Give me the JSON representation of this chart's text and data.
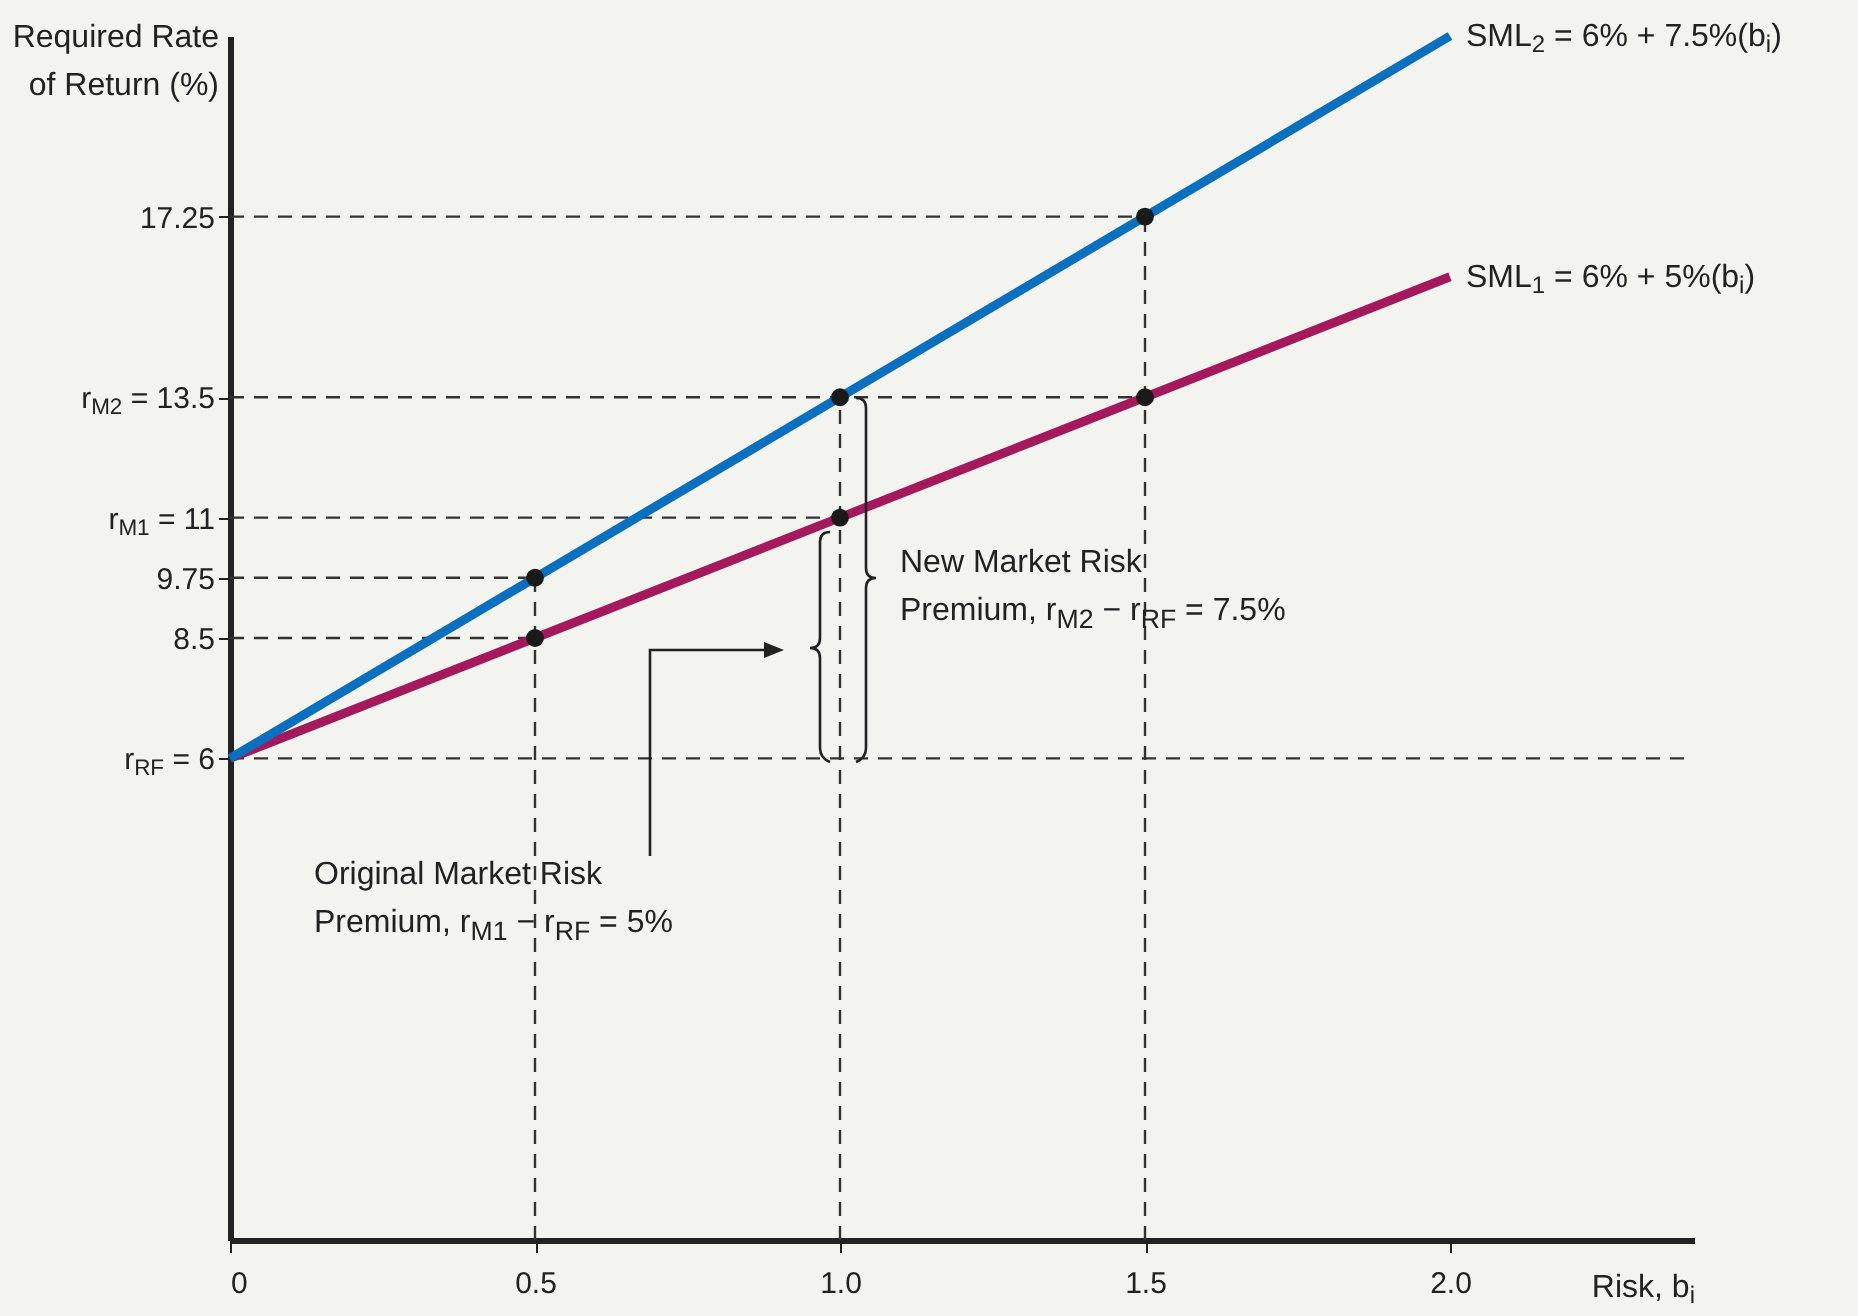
{
  "chart_data": {
    "type": "line",
    "xlabel": "Risk, b$_{i}$",
    "ylabel": "Required Rate\nof Return (%)",
    "x": [
      0,
      0.5,
      1.0,
      1.5,
      2.0
    ],
    "series": [
      {
        "name": "SML$_{1}$ = 6% + 5%(b$_{i}$)",
        "color": "#a3195b",
        "values": [
          6,
          8.5,
          11,
          13.5,
          16
        ]
      },
      {
        "name": "SML$_{2}$ = 6% + 7.5%(b$_{i}$)",
        "color": "#0a6fbf",
        "values": [
          6,
          9.75,
          13.5,
          17.25,
          21
        ]
      },
      {
        "type": "scatter",
        "color": "#1a1a1a",
        "marker": "circle",
        "x": [
          0.5,
          1.0,
          1.5,
          0.5,
          1.0,
          1.5
        ],
        "values": [
          8.5,
          11,
          13.5,
          9.75,
          13.5,
          17.25
        ]
      }
    ],
    "xlim": [
      0,
      2.4
    ],
    "ylim": [
      -4,
      21
    ],
    "xticks": [
      0,
      0.5,
      {
        "value": 1,
        "label": "1.0"
      },
      1.5,
      {
        "value": 2,
        "label": "2.0"
      }
    ],
    "yticks": [
      {
        "value": 6,
        "label": "r$_{RF}$ = 6"
      },
      8.5,
      9.75,
      {
        "value": 11,
        "label": "r$_{M1}$ = 11"
      },
      {
        "value": 13.5,
        "label": "r$_{M2}$ = 13.5"
      },
      17.25
    ],
    "ref_lines": [
      {
        "axis": "y",
        "value": 6,
        "line_style": "dashed",
        "color": "#333333"
      },
      {
        "axis": "y",
        "value": 8.5,
        "line_style": "dashed",
        "color": "#333333"
      },
      {
        "axis": "y",
        "value": 9.75,
        "line_style": "dashed",
        "color": "#333333"
      },
      {
        "axis": "y",
        "value": 11,
        "line_style": "dashed",
        "color": "#333333"
      },
      {
        "axis": "y",
        "value": 13.5,
        "line_style": "dashed",
        "color": "#333333"
      },
      {
        "axis": "y",
        "value": 17.25,
        "line_style": "dashed",
        "color": "#333333"
      },
      {
        "axis": "x",
        "value": 0.5,
        "line_style": "dashed",
        "color": "#333333"
      },
      {
        "axis": "x",
        "value": 1,
        "line_style": "dashed",
        "color": "#333333"
      },
      {
        "axis": "x",
        "value": 1.5,
        "line_style": "dashed",
        "color": "#333333"
      }
    ],
    "annotations": [
      "New Market Risk\nPremium, r$_{M2}$ − r$_{RF}$ = 7.5%",
      "Original Market Risk\nPremium, r$_{M1}$ − r$_{RF}$ = 5%"
    ]
  }
}
